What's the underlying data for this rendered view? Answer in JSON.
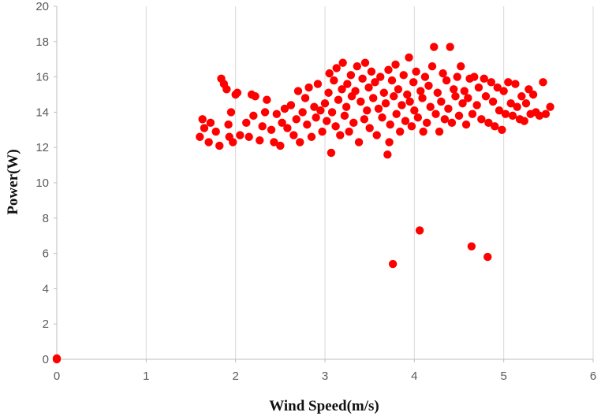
{
  "chart_data": {
    "type": "scatter",
    "title": "",
    "xlabel": "Wind Speed(m/s)",
    "ylabel": "Power(W)",
    "xlim": [
      0,
      6
    ],
    "ylim": [
      0,
      20
    ],
    "x_ticks": [
      0,
      1,
      2,
      3,
      4,
      5,
      6
    ],
    "y_ticks": [
      0,
      2,
      4,
      6,
      8,
      10,
      12,
      14,
      16,
      18,
      20
    ],
    "grid": "vertical",
    "legend": "none",
    "marker_color": "#ff0000",
    "series": [
      {
        "points": [
          [
            0.0,
            0.0
          ],
          [
            0.0,
            0.05
          ],
          [
            1.6,
            12.6
          ],
          [
            1.63,
            13.6
          ],
          [
            1.65,
            13.1
          ],
          [
            1.7,
            12.3
          ],
          [
            1.72,
            13.4
          ],
          [
            1.78,
            12.9
          ],
          [
            1.82,
            12.1
          ],
          [
            1.84,
            15.9
          ],
          [
            1.87,
            15.6
          ],
          [
            1.9,
            15.3
          ],
          [
            1.92,
            13.3
          ],
          [
            1.93,
            12.6
          ],
          [
            1.95,
            14.0
          ],
          [
            1.97,
            12.3
          ],
          [
            2.0,
            15.0
          ],
          [
            2.02,
            15.1
          ],
          [
            2.05,
            12.7
          ],
          [
            2.12,
            13.4
          ],
          [
            2.15,
            12.6
          ],
          [
            2.18,
            15.0
          ],
          [
            2.2,
            13.8
          ],
          [
            2.22,
            14.9
          ],
          [
            2.27,
            12.4
          ],
          [
            2.3,
            13.2
          ],
          [
            2.33,
            14.0
          ],
          [
            2.35,
            14.7
          ],
          [
            2.4,
            13.0
          ],
          [
            2.43,
            12.3
          ],
          [
            2.46,
            13.9
          ],
          [
            2.5,
            12.1
          ],
          [
            2.52,
            13.4
          ],
          [
            2.55,
            14.2
          ],
          [
            2.58,
            13.1
          ],
          [
            2.62,
            14.4
          ],
          [
            2.65,
            12.7
          ],
          [
            2.68,
            13.6
          ],
          [
            2.7,
            15.2
          ],
          [
            2.72,
            12.3
          ],
          [
            2.75,
            14.0
          ],
          [
            2.78,
            14.8
          ],
          [
            2.8,
            13.3
          ],
          [
            2.82,
            15.4
          ],
          [
            2.85,
            12.6
          ],
          [
            2.88,
            14.3
          ],
          [
            2.9,
            13.7
          ],
          [
            2.92,
            15.6
          ],
          [
            2.95,
            14.1
          ],
          [
            2.97,
            12.9
          ],
          [
            3.0,
            14.5
          ],
          [
            3.02,
            13.5
          ],
          [
            3.04,
            15.1
          ],
          [
            3.05,
            16.2
          ],
          [
            3.07,
            11.7
          ],
          [
            3.08,
            14.0
          ],
          [
            3.1,
            15.8
          ],
          [
            3.12,
            13.2
          ],
          [
            3.13,
            16.5
          ],
          [
            3.15,
            14.7
          ],
          [
            3.17,
            12.7
          ],
          [
            3.19,
            15.3
          ],
          [
            3.2,
            16.8
          ],
          [
            3.22,
            13.8
          ],
          [
            3.24,
            14.3
          ],
          [
            3.25,
            15.6
          ],
          [
            3.27,
            12.9
          ],
          [
            3.29,
            16.1
          ],
          [
            3.3,
            14.9
          ],
          [
            3.32,
            13.4
          ],
          [
            3.34,
            15.2
          ],
          [
            3.36,
            16.6
          ],
          [
            3.38,
            12.3
          ],
          [
            3.4,
            14.6
          ],
          [
            3.42,
            15.9
          ],
          [
            3.44,
            13.6
          ],
          [
            3.45,
            16.8
          ],
          [
            3.47,
            14.1
          ],
          [
            3.49,
            15.4
          ],
          [
            3.5,
            13.1
          ],
          [
            3.52,
            16.3
          ],
          [
            3.54,
            14.8
          ],
          [
            3.56,
            15.7
          ],
          [
            3.58,
            12.7
          ],
          [
            3.6,
            14.2
          ],
          [
            3.62,
            16.0
          ],
          [
            3.64,
            13.7
          ],
          [
            3.66,
            15.1
          ],
          [
            3.68,
            14.5
          ],
          [
            3.7,
            11.6
          ],
          [
            3.71,
            16.4
          ],
          [
            3.72,
            12.3
          ],
          [
            3.73,
            13.3
          ],
          [
            3.75,
            15.8
          ],
          [
            3.76,
            5.4
          ],
          [
            3.77,
            14.9
          ],
          [
            3.79,
            16.7
          ],
          [
            3.8,
            13.9
          ],
          [
            3.82,
            15.3
          ],
          [
            3.84,
            12.9
          ],
          [
            3.86,
            14.4
          ],
          [
            3.88,
            16.1
          ],
          [
            3.9,
            13.5
          ],
          [
            3.92,
            15.0
          ],
          [
            3.94,
            17.1
          ],
          [
            3.95,
            14.6
          ],
          [
            3.97,
            13.2
          ],
          [
            3.99,
            15.7
          ],
          [
            4.0,
            14.1
          ],
          [
            4.02,
            16.3
          ],
          [
            4.04,
            13.7
          ],
          [
            4.06,
            7.3
          ],
          [
            4.07,
            15.2
          ],
          [
            4.09,
            14.8
          ],
          [
            4.1,
            12.9
          ],
          [
            4.12,
            16.0
          ],
          [
            4.14,
            13.4
          ],
          [
            4.16,
            15.5
          ],
          [
            4.18,
            14.3
          ],
          [
            4.2,
            16.6
          ],
          [
            4.22,
            17.7
          ],
          [
            4.24,
            13.9
          ],
          [
            4.26,
            15.1
          ],
          [
            4.28,
            12.9
          ],
          [
            4.3,
            14.6
          ],
          [
            4.32,
            16.2
          ],
          [
            4.34,
            13.6
          ],
          [
            4.36,
            15.8
          ],
          [
            4.38,
            14.2
          ],
          [
            4.4,
            17.7
          ],
          [
            4.42,
            13.4
          ],
          [
            4.44,
            15.3
          ],
          [
            4.46,
            14.9
          ],
          [
            4.48,
            16.0
          ],
          [
            4.5,
            13.8
          ],
          [
            4.52,
            16.6
          ],
          [
            4.54,
            14.5
          ],
          [
            4.56,
            15.2
          ],
          [
            4.58,
            13.3
          ],
          [
            4.6,
            14.8
          ],
          [
            4.62,
            15.9
          ],
          [
            4.64,
            6.4
          ],
          [
            4.65,
            13.9
          ],
          [
            4.67,
            16.0
          ],
          [
            4.7,
            14.4
          ],
          [
            4.72,
            15.4
          ],
          [
            4.75,
            13.6
          ],
          [
            4.78,
            15.9
          ],
          [
            4.8,
            14.9
          ],
          [
            4.82,
            5.8
          ],
          [
            4.83,
            13.4
          ],
          [
            4.86,
            15.7
          ],
          [
            4.88,
            14.6
          ],
          [
            4.9,
            13.2
          ],
          [
            4.93,
            15.4
          ],
          [
            4.95,
            14.1
          ],
          [
            4.98,
            13.0
          ],
          [
            5.0,
            15.2
          ],
          [
            5.02,
            13.9
          ],
          [
            5.05,
            15.7
          ],
          [
            5.08,
            14.5
          ],
          [
            5.1,
            13.8
          ],
          [
            5.13,
            15.6
          ],
          [
            5.15,
            14.3
          ],
          [
            5.18,
            13.6
          ],
          [
            5.2,
            14.9
          ],
          [
            5.23,
            13.5
          ],
          [
            5.25,
            14.5
          ],
          [
            5.28,
            15.3
          ],
          [
            5.3,
            13.9
          ],
          [
            5.33,
            15.0
          ],
          [
            5.36,
            14.0
          ],
          [
            5.4,
            13.8
          ],
          [
            5.44,
            15.7
          ],
          [
            5.47,
            13.9
          ],
          [
            5.52,
            14.3
          ]
        ]
      }
    ]
  }
}
